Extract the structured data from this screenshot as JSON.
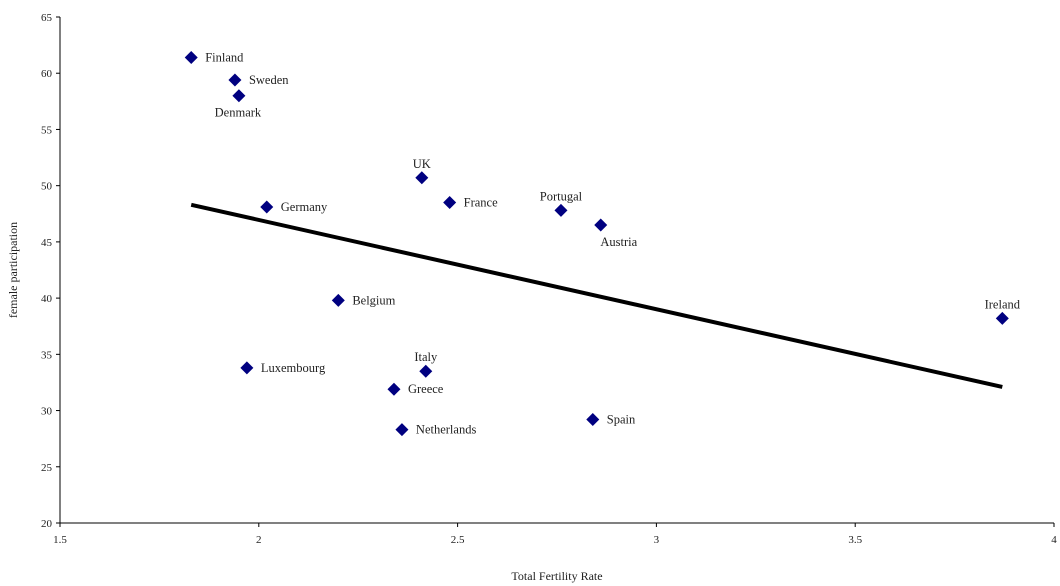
{
  "chart_data": {
    "type": "scatter",
    "title": "",
    "xlabel": "Total Fertility Rate",
    "ylabel": "female participation",
    "xlim": [
      1.5,
      4
    ],
    "ylim": [
      20,
      65
    ],
    "xticks": [
      1.5,
      2,
      2.5,
      3,
      3.5,
      4
    ],
    "yticks": [
      20,
      25,
      30,
      35,
      40,
      45,
      50,
      55,
      60,
      65
    ],
    "grid": false,
    "legend": "none",
    "marker_color": "#000080",
    "trendline_color": "#000000",
    "points": [
      {
        "label": "Finland",
        "x": 1.83,
        "y": 61.4,
        "anchor": "right"
      },
      {
        "label": "Sweden",
        "x": 1.94,
        "y": 59.4,
        "anchor": "right"
      },
      {
        "label": "Denmark",
        "x": 1.95,
        "y": 58.0,
        "anchor": "below"
      },
      {
        "label": "UK",
        "x": 2.41,
        "y": 50.7,
        "anchor": "above"
      },
      {
        "label": "Germany",
        "x": 2.02,
        "y": 48.1,
        "anchor": "right"
      },
      {
        "label": "France",
        "x": 2.48,
        "y": 48.5,
        "anchor": "right"
      },
      {
        "label": "Portugal",
        "x": 2.76,
        "y": 47.8,
        "anchor": "above"
      },
      {
        "label": "Austria",
        "x": 2.86,
        "y": 46.5,
        "anchor": "below"
      },
      {
        "label": "Belgium",
        "x": 2.2,
        "y": 39.8,
        "anchor": "right"
      },
      {
        "label": "Ireland",
        "x": 3.87,
        "y": 38.2,
        "anchor": "above"
      },
      {
        "label": "Italy",
        "x": 2.42,
        "y": 33.5,
        "anchor": "above"
      },
      {
        "label": "Luxembourg",
        "x": 1.97,
        "y": 33.8,
        "anchor": "right"
      },
      {
        "label": "Greece",
        "x": 2.34,
        "y": 31.9,
        "anchor": "right"
      },
      {
        "label": "Spain",
        "x": 2.84,
        "y": 29.2,
        "anchor": "right"
      },
      {
        "label": "Netherlands",
        "x": 2.36,
        "y": 28.3,
        "anchor": "right"
      }
    ],
    "trendline": {
      "x": [
        1.83,
        3.87
      ],
      "y": [
        48.3,
        32.1
      ]
    }
  }
}
